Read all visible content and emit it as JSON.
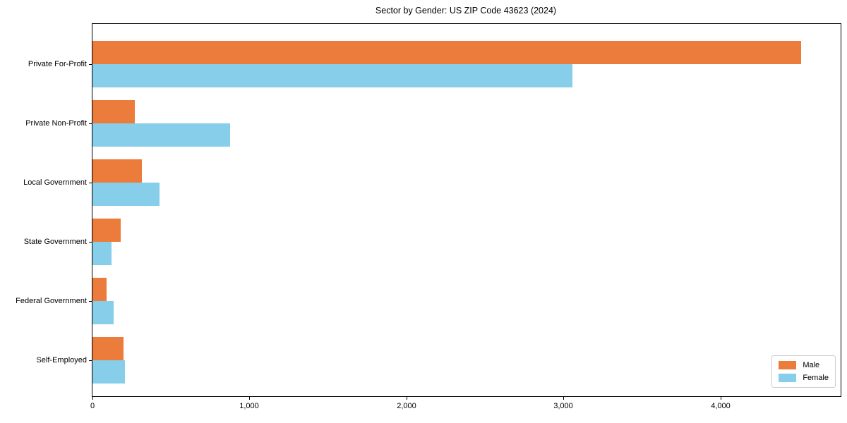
{
  "chart_data": {
    "type": "bar",
    "orientation": "horizontal",
    "title": "Sector by Gender: US ZIP Code 43623 (2024)",
    "categories": [
      "Private For-Profit",
      "Private Non-Profit",
      "Local Government",
      "State Government",
      "Federal Government",
      "Self-Employed"
    ],
    "series": [
      {
        "name": "Male",
        "color": "#EB7C3C",
        "values": [
          4515,
          270,
          315,
          180,
          90,
          200
        ]
      },
      {
        "name": "Female",
        "color": "#87CEEB",
        "values": [
          3055,
          875,
          425,
          120,
          135,
          205
        ]
      }
    ],
    "xlabel": "",
    "ylabel": "",
    "xlim": [
      0,
      4765
    ],
    "xticks": [
      0,
      1000,
      2000,
      3000,
      4000
    ],
    "xtick_labels": [
      "0",
      "1,000",
      "2,000",
      "3,000",
      "4,000"
    ],
    "grid": false,
    "legend": {
      "position": "lower right",
      "entries": [
        "Male",
        "Female"
      ]
    }
  }
}
